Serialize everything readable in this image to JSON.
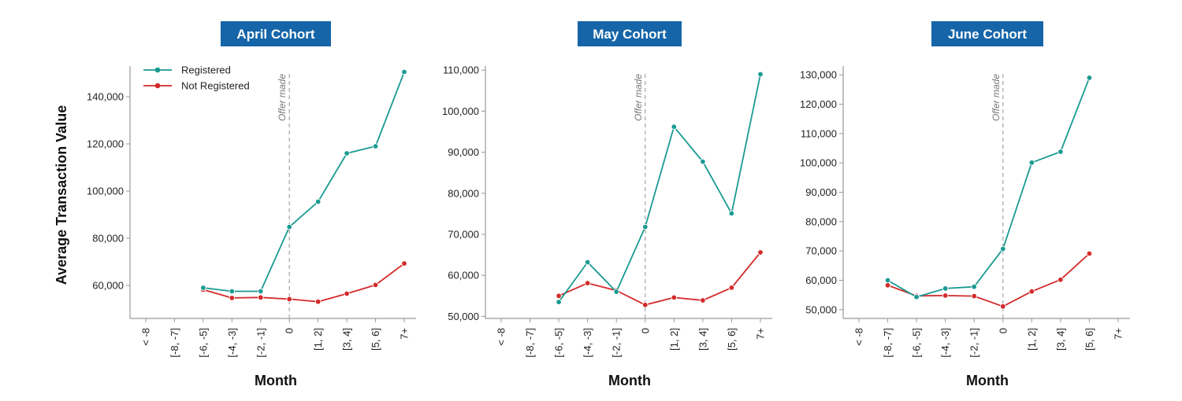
{
  "colors": {
    "registered": "#1a9a92",
    "not_registered": "#d42a2a",
    "title_box": "#1565a8",
    "axis": "#999999",
    "offer_line": "#aaaaaa"
  },
  "ylabel": "Average Transaction Value",
  "xlabel": "Month",
  "annotation": "Offer made",
  "legend": {
    "placement": "top-left",
    "items": [
      "Registered",
      "Not Registered"
    ]
  },
  "chart_data": [
    {
      "type": "line",
      "title": "April Cohort",
      "xlabel": "Month",
      "categories": [
        "< -8",
        "[-8, -7]",
        "[-6, -5]",
        "[-4, -3]",
        "[-2, -1]",
        "0",
        "[1, 2]",
        "[3, 4]",
        "[5, 6]",
        "7+"
      ],
      "ylim": [
        46000,
        153000
      ],
      "yticks": [
        60000,
        80000,
        100000,
        120000,
        140000
      ],
      "ytick_labels": [
        "60,000",
        "80,000",
        "100,000",
        "120,000",
        "140,000"
      ],
      "offer_at": "0",
      "series": [
        {
          "name": "Registered",
          "values": [
            null,
            null,
            59000,
            57500,
            57500,
            84800,
            95500,
            116000,
            119000,
            150500
          ]
        },
        {
          "name": "Not Registered",
          "values": [
            null,
            null,
            58200,
            54700,
            54900,
            54200,
            53100,
            56500,
            60200,
            69300
          ]
        }
      ]
    },
    {
      "type": "line",
      "title": "May Cohort",
      "xlabel": "Month",
      "categories": [
        "< -8",
        "[-8, -7]",
        "[-6, -5]",
        "[-4, -3]",
        "[-2, -1]",
        "0",
        "[1, 2]",
        "[3, 4]",
        "[5, 6]",
        "7+"
      ],
      "ylim": [
        49500,
        111000
      ],
      "yticks": [
        50000,
        60000,
        70000,
        80000,
        90000,
        100000,
        110000
      ],
      "ytick_labels": [
        "50,000",
        "60,000",
        "70,000",
        "80,000",
        "90,000",
        "100,000",
        "110,000"
      ],
      "offer_at": "0",
      "series": [
        {
          "name": "Registered",
          "values": [
            null,
            null,
            53500,
            63200,
            56000,
            71800,
            96200,
            87700,
            75100,
            109000
          ]
        },
        {
          "name": "Not Registered",
          "values": [
            null,
            null,
            55000,
            58100,
            56300,
            52800,
            54600,
            53900,
            57000,
            65600
          ]
        }
      ]
    },
    {
      "type": "line",
      "title": "June Cohort",
      "xlabel": "Month",
      "categories": [
        "< -8",
        "[-8, -7]",
        "[-6, -5]",
        "[-4, -3]",
        "[-2, -1]",
        "0",
        "[1, 2]",
        "[3, 4]",
        "[5, 6]",
        "7+"
      ],
      "ylim": [
        47000,
        133000
      ],
      "yticks": [
        50000,
        60000,
        70000,
        80000,
        90000,
        100000,
        110000,
        120000,
        130000
      ],
      "ytick_labels": [
        "50,000",
        "60,000",
        "70,000",
        "80,000",
        "90,000",
        "100,000",
        "110,000",
        "120,000",
        "130,000"
      ],
      "offer_at": "0",
      "series": [
        {
          "name": "Registered",
          "values": [
            null,
            60000,
            54300,
            57200,
            57800,
            70700,
            100100,
            103800,
            129000,
            null
          ]
        },
        {
          "name": "Not Registered",
          "values": [
            null,
            58300,
            54700,
            54800,
            54600,
            51100,
            56200,
            60200,
            69100,
            null
          ]
        }
      ]
    }
  ]
}
